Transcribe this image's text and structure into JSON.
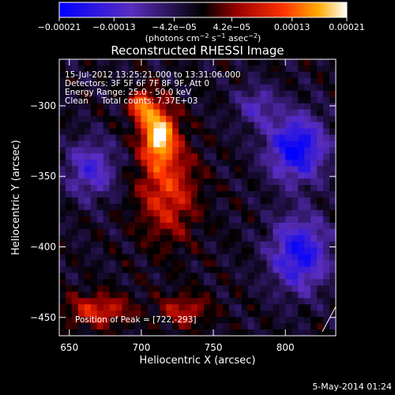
{
  "chart_data": {
    "type": "heatmap",
    "title": "Reconstructed RHESSI Image",
    "xlabel": "Heliocentric X (arcsec)",
    "ylabel": "Heliocentric Y (arcsec)",
    "xlim": [
      643,
      835
    ],
    "ylim": [
      -463,
      -267
    ],
    "xticks": [
      650,
      700,
      750,
      800
    ],
    "xtick_labels": [
      "650",
      "700",
      "750",
      "800"
    ],
    "yticks": [
      -450,
      -400,
      -350,
      -300
    ],
    "ytick_labels": [
      "−450",
      "−400",
      "−350",
      "−300"
    ],
    "colorbar": {
      "range": [
        -0.00021,
        0.00021
      ],
      "ticks": [
        -0.00021,
        -0.00013,
        -4.2e-05,
        4.2e-05,
        0.00013,
        0.00021
      ],
      "tick_labels": [
        "−0.00021",
        "−0.00013",
        "−4.2e−05",
        "4.2e−05",
        "0.00013",
        "0.00021"
      ],
      "units_prefix": "(photons cm",
      "units_exp1": "−2",
      "units_mid": " s",
      "units_exp2": "−1",
      "units_mid2": " asec",
      "units_exp3": "−2",
      "units_suffix": ")"
    },
    "annotations": [
      "15-Jul-2012 13:25:21.000 to 13:31:06.000",
      "Detectors: 3F 5F 6F 7F 8F 9F, Att 0",
      "Energy Range: 25.0 - 50.0 keV",
      "Clean     Total counts: 7.37E+03"
    ],
    "peak_label": "Position of Peak = [722,-293]",
    "peak": [
      722,
      -293
    ],
    "bright_regions": [
      {
        "x": 712,
        "y": -320,
        "amplitude": 1.0,
        "sigma_x": 8,
        "sigma_y": 14
      },
      {
        "x": 700,
        "y": -300,
        "amplitude": 0.7,
        "sigma_x": 6,
        "sigma_y": 8
      },
      {
        "x": 718,
        "y": -360,
        "amplitude": 0.55,
        "sigma_x": 14,
        "sigma_y": 24
      },
      {
        "x": 670,
        "y": -445,
        "amplitude": 0.5,
        "sigma_x": 16,
        "sigma_y": 8
      },
      {
        "x": 730,
        "y": -445,
        "amplitude": 0.4,
        "sigma_x": 12,
        "sigma_y": 8
      }
    ],
    "dim_regions": [
      {
        "x": 808,
        "y": -330,
        "amplitude": -0.9,
        "sigma_x": 14,
        "sigma_y": 16
      },
      {
        "x": 810,
        "y": -405,
        "amplitude": -0.8,
        "sigma_x": 14,
        "sigma_y": 18
      },
      {
        "x": 665,
        "y": -345,
        "amplitude": -0.55,
        "sigma_x": 12,
        "sigma_y": 14
      },
      {
        "x": 780,
        "y": -300,
        "amplitude": -0.4,
        "sigma_x": 10,
        "sigma_y": 10
      }
    ]
  },
  "footer": {
    "date": "5-May-2014 01:24"
  }
}
